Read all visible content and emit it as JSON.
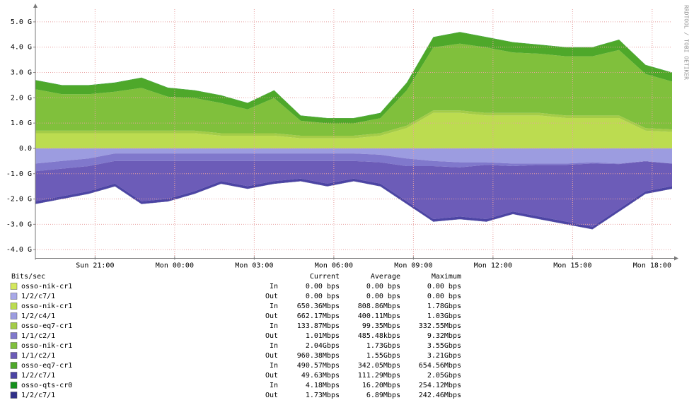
{
  "chart_data": {
    "type": "area",
    "stacked": true,
    "side_note": "RRDTOOL / TOBI OETIKER",
    "legend_header": {
      "unit": "Bits/sec",
      "current": "Current",
      "average": "Average",
      "maximum": "Maximum"
    },
    "x": [
      18.75,
      19.75,
      20.75,
      21.75,
      22.75,
      23.75,
      24.75,
      25.75,
      26.75,
      27.75,
      28.75,
      29.75,
      30.75,
      31.75,
      32.75,
      33.75,
      34.75,
      35.75,
      36.75,
      37.75,
      38.75,
      39.75,
      40.75,
      41.75,
      42.75
    ],
    "xlim": [
      18.75,
      42.75
    ],
    "xticks": [
      {
        "value": 21,
        "label": "Sun 21:00"
      },
      {
        "value": 24,
        "label": "Mon 00:00"
      },
      {
        "value": 27,
        "label": "Mon 03:00"
      },
      {
        "value": 30,
        "label": "Mon 06:00"
      },
      {
        "value": 33,
        "label": "Mon 09:00"
      },
      {
        "value": 36,
        "label": "Mon 12:00"
      },
      {
        "value": 39,
        "label": "Mon 15:00"
      },
      {
        "value": 42,
        "label": "Mon 18:00"
      }
    ],
    "ylim": [
      -4.4,
      5.5
    ],
    "yticks": [
      {
        "value": 5,
        "label": "5.0 G"
      },
      {
        "value": 4,
        "label": "4.0 G"
      },
      {
        "value": 3,
        "label": "3.0 G"
      },
      {
        "value": 2,
        "label": "2.0 G"
      },
      {
        "value": 1,
        "label": "1.0 G"
      },
      {
        "value": 0,
        "label": "0.0"
      },
      {
        "value": -1,
        "label": "-1.0 G"
      },
      {
        "value": -2,
        "label": "-2.0 G"
      },
      {
        "value": -3,
        "label": "-3.0 G"
      },
      {
        "value": -4,
        "label": "-4.0 G"
      }
    ],
    "grid": true,
    "series": [
      {
        "name": "osso-nik-cr1",
        "direction": "In",
        "current": "0.00 bps",
        "average": "0.00 bps",
        "maximum": "0.00 bps",
        "color": "#d4e85c",
        "values": [
          0,
          0,
          0,
          0,
          0,
          0,
          0,
          0,
          0,
          0,
          0,
          0,
          0,
          0,
          0,
          0,
          0,
          0,
          0,
          0,
          0,
          0,
          0,
          0,
          0
        ]
      },
      {
        "name": "1/2/c7/1",
        "direction": "Out",
        "current": "0.00 bps",
        "average": "0.00 bps",
        "maximum": "0.00 bps",
        "color": "#a8a8e8",
        "values": [
          0,
          0,
          0,
          0,
          0,
          0,
          0,
          0,
          0,
          0,
          0,
          0,
          0,
          0,
          0,
          0,
          0,
          0,
          0,
          0,
          0,
          0,
          0,
          0,
          0
        ]
      },
      {
        "name": "osso-nik-cr1",
        "direction": "In",
        "current": "650.36Mbps",
        "average": "808.86Mbps",
        "maximum": "1.78Gbps",
        "color": "#bcdc50",
        "values": [
          0.6,
          0.6,
          0.6,
          0.6,
          0.6,
          0.6,
          0.6,
          0.5,
          0.5,
          0.5,
          0.4,
          0.4,
          0.4,
          0.5,
          0.8,
          1.4,
          1.4,
          1.3,
          1.3,
          1.3,
          1.2,
          1.2,
          1.2,
          0.7,
          0.65
        ]
      },
      {
        "name": "1/2/c4/1",
        "direction": "Out",
        "current": "662.17Mbps",
        "average": "400.11Mbps",
        "maximum": "1.03Gbps",
        "color": "#9c9ce0",
        "values": [
          -0.6,
          -0.5,
          -0.4,
          -0.2,
          -0.2,
          -0.2,
          -0.2,
          -0.2,
          -0.2,
          -0.2,
          -0.2,
          -0.2,
          -0.2,
          -0.25,
          -0.4,
          -0.5,
          -0.55,
          -0.55,
          -0.6,
          -0.6,
          -0.6,
          -0.55,
          -0.6,
          -0.5,
          -0.6
        ]
      },
      {
        "name": "osso-eq7-cr1",
        "direction": "In",
        "current": "133.87Mbps",
        "average": "99.35Mbps",
        "maximum": "332.55Mbps",
        "color": "#a4cc48",
        "values": [
          0.1,
          0.1,
          0.1,
          0.1,
          0.1,
          0.1,
          0.1,
          0.1,
          0.1,
          0.1,
          0.1,
          0.1,
          0.1,
          0.1,
          0.1,
          0.1,
          0.1,
          0.1,
          0.1,
          0.1,
          0.1,
          0.1,
          0.1,
          0.1,
          0.1
        ]
      },
      {
        "name": "1/1/c2/1",
        "direction": "Out",
        "current": "1.01Mbps",
        "average": "485.48kbps",
        "maximum": "9.32Mbps",
        "color": "#8078cc",
        "values": [
          -0.3,
          -0.3,
          -0.3,
          -0.3,
          -0.3,
          -0.3,
          -0.3,
          -0.3,
          -0.3,
          -0.3,
          -0.3,
          -0.3,
          -0.3,
          -0.3,
          -0.3,
          -0.2,
          -0.2,
          -0.1,
          -0.1,
          -0.05,
          -0.05,
          -0.05,
          -0.02,
          -0.01,
          -0.001
        ]
      },
      {
        "name": "osso-nik-cr1",
        "direction": "In",
        "current": "2.04Gbps",
        "average": "1.73Gbps",
        "maximum": "3.55Gbps",
        "color": "#80c03c",
        "values": [
          1.64,
          1.44,
          1.44,
          1.54,
          1.69,
          1.34,
          1.29,
          1.19,
          0.94,
          1.39,
          0.59,
          0.49,
          0.49,
          0.59,
          1.39,
          2.49,
          2.64,
          2.59,
          2.39,
          2.34,
          2.34,
          2.34,
          2.59,
          2.14,
          1.89
        ]
      },
      {
        "name": "1/1/c2/1",
        "direction": "Out",
        "current": "960.38Mbps",
        "average": "1.55Gbps",
        "maximum": "3.21Gbps",
        "color": "#6c5cb8",
        "values": [
          -1.193,
          -1.093,
          -0.993,
          -0.893,
          -1.593,
          -1.493,
          -1.193,
          -0.793,
          -0.993,
          -0.793,
          -0.693,
          -0.893,
          -0.693,
          -0.843,
          -1.393,
          -2.093,
          -1.943,
          -2.143,
          -1.793,
          -2.043,
          -2.243,
          -2.493,
          -1.773,
          -1.183,
          -0.892
        ]
      },
      {
        "name": "osso-eq7-cr1",
        "direction": "In",
        "current": "490.57Mbps",
        "average": "342.05Mbps",
        "maximum": "654.56Mbps",
        "color": "#4ea82a",
        "values": [
          0.35,
          0.35,
          0.35,
          0.35,
          0.4,
          0.35,
          0.3,
          0.3,
          0.25,
          0.3,
          0.2,
          0.2,
          0.2,
          0.2,
          0.3,
          0.4,
          0.45,
          0.4,
          0.4,
          0.35,
          0.35,
          0.35,
          0.4,
          0.35,
          0.35
        ]
      },
      {
        "name": "1/2/c7/1",
        "direction": "Out",
        "current": "49.63Mbps",
        "average": "111.29Mbps",
        "maximum": "2.05Gbps",
        "color": "#4c44a4",
        "values": [
          -0.1,
          -0.1,
          -0.1,
          -0.1,
          -0.1,
          -0.1,
          -0.1,
          -0.1,
          -0.1,
          -0.1,
          -0.1,
          -0.1,
          -0.1,
          -0.1,
          -0.1,
          -0.1,
          -0.1,
          -0.1,
          -0.1,
          -0.1,
          -0.1,
          -0.1,
          -0.1,
          -0.1,
          -0.1
        ]
      },
      {
        "name": "osso-qts-cr0",
        "direction": "In",
        "current": "4.18Mbps",
        "average": "16.20Mbps",
        "maximum": "254.12Mbps",
        "color": "#14901c",
        "values": [
          0.01,
          0.01,
          0.01,
          0.01,
          0.01,
          0.01,
          0.01,
          0.01,
          0.01,
          0.01,
          0.01,
          0.01,
          0.01,
          0.01,
          0.01,
          0.01,
          0.01,
          0.01,
          0.01,
          0.01,
          0.01,
          0.01,
          0.01,
          0.01,
          0.01
        ]
      },
      {
        "name": "1/2/c7/1",
        "direction": "Out",
        "current": "1.73Mbps",
        "average": "6.89Mbps",
        "maximum": "242.46Mbps",
        "color": "#303088",
        "values": [
          -0.007,
          -0.007,
          -0.007,
          -0.007,
          -0.007,
          -0.007,
          -0.007,
          -0.007,
          -0.007,
          -0.007,
          -0.007,
          -0.007,
          -0.007,
          -0.007,
          -0.007,
          -0.007,
          -0.007,
          -0.007,
          -0.007,
          -0.007,
          -0.007,
          -0.007,
          -0.007,
          -0.007,
          -0.007
        ]
      }
    ]
  }
}
